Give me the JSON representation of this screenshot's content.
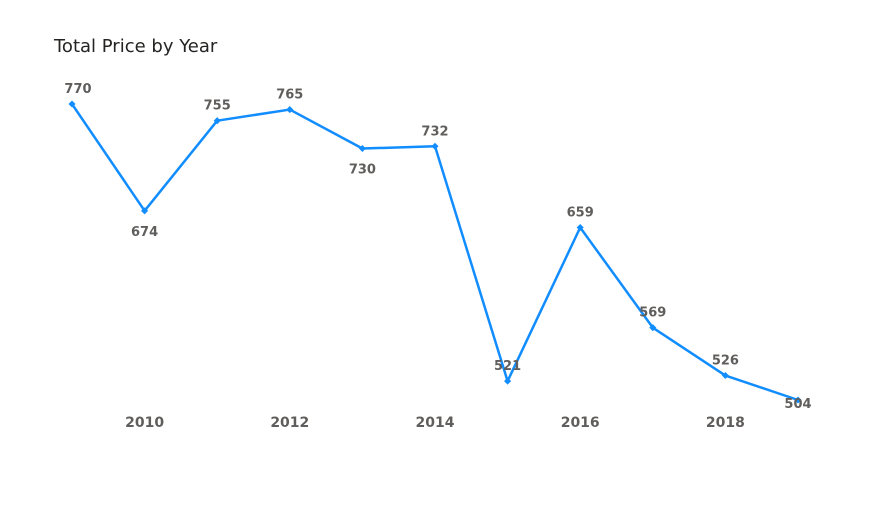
{
  "chart_data": {
    "type": "line",
    "title": "Total Price by Year",
    "xlabel": "",
    "ylabel": "",
    "x": [
      2009,
      2010,
      2011,
      2012,
      2013,
      2014,
      2015,
      2016,
      2017,
      2018,
      2019
    ],
    "values": [
      770,
      674,
      755,
      765,
      730,
      732,
      521,
      659,
      569,
      526,
      504
    ],
    "x_ticks": [
      "2010",
      "2012",
      "2014",
      "2016",
      "2018"
    ],
    "xlim": [
      2009,
      2019
    ],
    "ylim": [
      504,
      770
    ],
    "grid": false,
    "legend": "none",
    "data_labels": true
  },
  "colors": {
    "line": "#118DFF",
    "label": "#605e5c",
    "title": "#252423"
  }
}
